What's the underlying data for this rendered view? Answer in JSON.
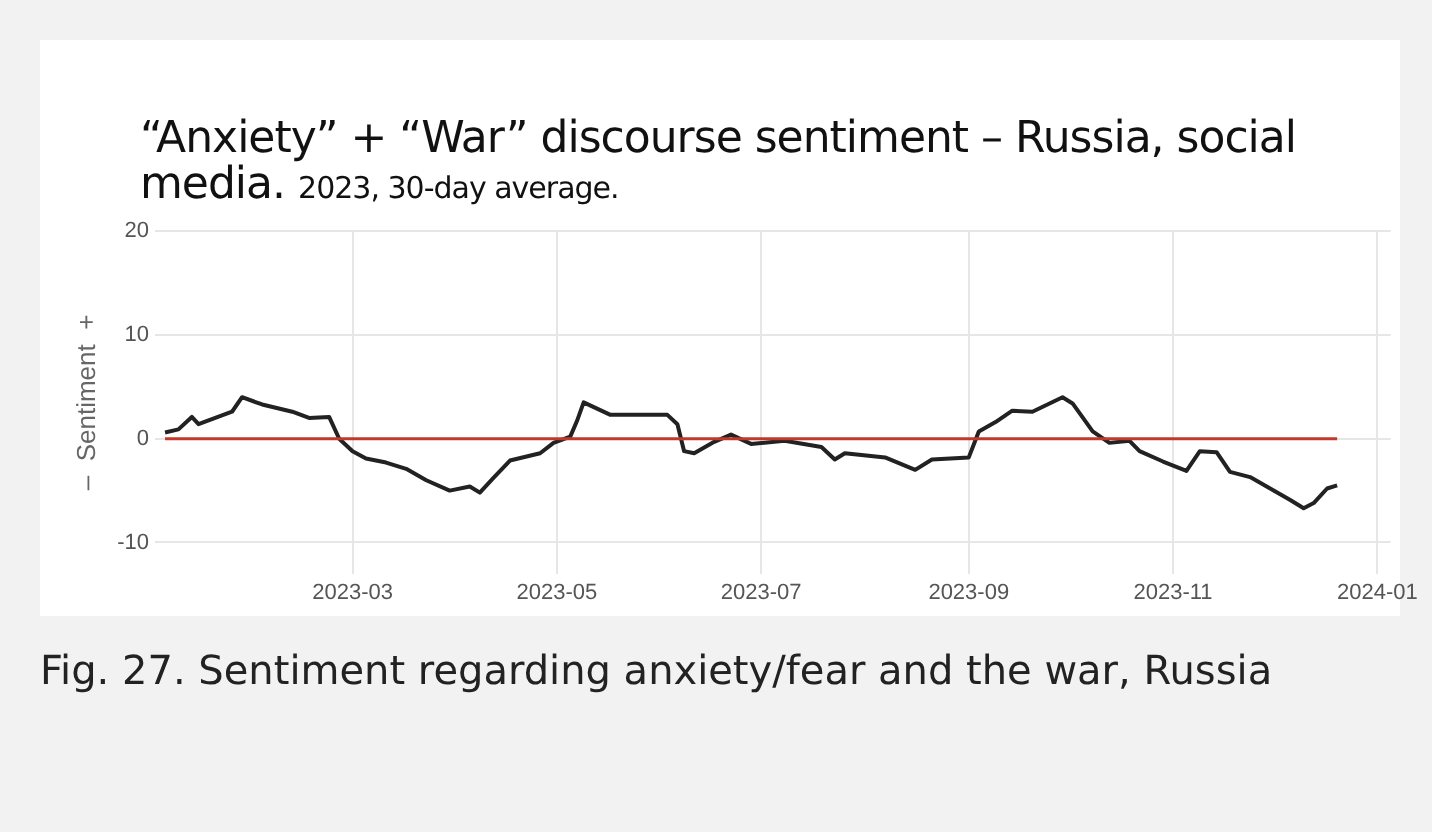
{
  "chart_data": {
    "type": "line",
    "title": "“Anxiety” + “War” discourse sentiment – Russia, social media.",
    "subtitle": "2023, 30-day average.",
    "ylabel": "–  Sentiment  +",
    "annotations": [
      "Fig. 27.  Sentiment regarding anxiety/fear and the war, Russia"
    ],
    "series": [
      {
        "color": "#222222",
        "x": [
          "2023-01-04",
          "2023-01-08",
          "2023-01-12",
          "2023-01-14",
          "2023-01-19",
          "2023-01-24",
          "2023-01-27",
          "2023-02-02",
          "2023-02-11",
          "2023-02-16",
          "2023-02-22",
          "2023-02-25",
          "2023-03-01",
          "2023-03-05",
          "2023-03-11",
          "2023-03-17",
          "2023-03-23",
          "2023-03-30",
          "2023-04-05",
          "2023-04-08",
          "2023-04-12",
          "2023-04-17",
          "2023-04-26",
          "2023-04-30",
          "2023-05-05",
          "2023-05-07",
          "2023-05-09",
          "2023-05-17",
          "2023-05-27",
          "2023-06-03",
          "2023-06-06",
          "2023-06-08",
          "2023-06-11",
          "2023-06-17",
          "2023-06-22",
          "2023-06-28",
          "2023-07-08",
          "2023-07-19",
          "2023-07-23",
          "2023-07-26",
          "2023-08-07",
          "2023-08-16",
          "2023-08-21",
          "2023-09-01",
          "2023-09-04",
          "2023-09-09",
          "2023-09-14",
          "2023-09-20",
          "2023-09-29",
          "2023-10-02",
          "2023-10-08",
          "2023-10-13",
          "2023-10-19",
          "2023-10-22",
          "2023-10-29",
          "2023-11-05",
          "2023-11-09",
          "2023-11-14",
          "2023-11-18",
          "2023-11-24",
          "2023-11-30",
          "2023-12-06",
          "2023-12-10",
          "2023-12-13",
          "2023-12-17",
          "2023-12-20"
        ],
        "values": [
          0.6,
          0.9,
          2.1,
          1.4,
          2.0,
          2.6,
          4.0,
          3.3,
          2.6,
          2.0,
          2.1,
          0,
          -1.2,
          -1.9,
          -2.3,
          -2.9,
          -4.0,
          -5.0,
          -4.6,
          -5.2,
          -3.8,
          -2.1,
          -1.4,
          -0.4,
          0.2,
          1.7,
          3.5,
          2.3,
          2.3,
          2.3,
          1.4,
          -1.2,
          -1.4,
          -0.3,
          0.4,
          -0.5,
          -0.2,
          -0.8,
          -2.0,
          -1.4,
          -1.8,
          -3.0,
          -2.0,
          -1.8,
          0.7,
          1.6,
          2.7,
          2.6,
          4.0,
          3.4,
          0.7,
          -0.4,
          -0.2,
          -1.2,
          -2.2,
          -3.1,
          -1.2,
          -1.3,
          -3.2,
          -3.7,
          -4.8,
          -5.9,
          -6.7,
          -6.2,
          -4.8,
          -4.5
        ]
      }
    ],
    "xlim": [
      "2023-01-01",
      "2024-01-05"
    ],
    "xticks": [
      {
        "value": "2023-03-01",
        "label": "2023-03"
      },
      {
        "value": "2023-05-01",
        "label": "2023-05"
      },
      {
        "value": "2023-07-01",
        "label": "2023-07"
      },
      {
        "value": "2023-09-01",
        "label": "2023-09"
      },
      {
        "value": "2023-11-01",
        "label": "2023-11"
      },
      {
        "value": "2024-01-01",
        "label": "2024-01"
      }
    ],
    "ylim": [
      -13,
      20
    ],
    "yticks": [
      -10,
      0,
      10,
      20
    ],
    "ref_lines": [
      {
        "axis": "y",
        "value": 0,
        "color": "#c0392b"
      }
    ],
    "grid": true,
    "legend": false,
    "marker": "none",
    "line_style": "solid"
  }
}
